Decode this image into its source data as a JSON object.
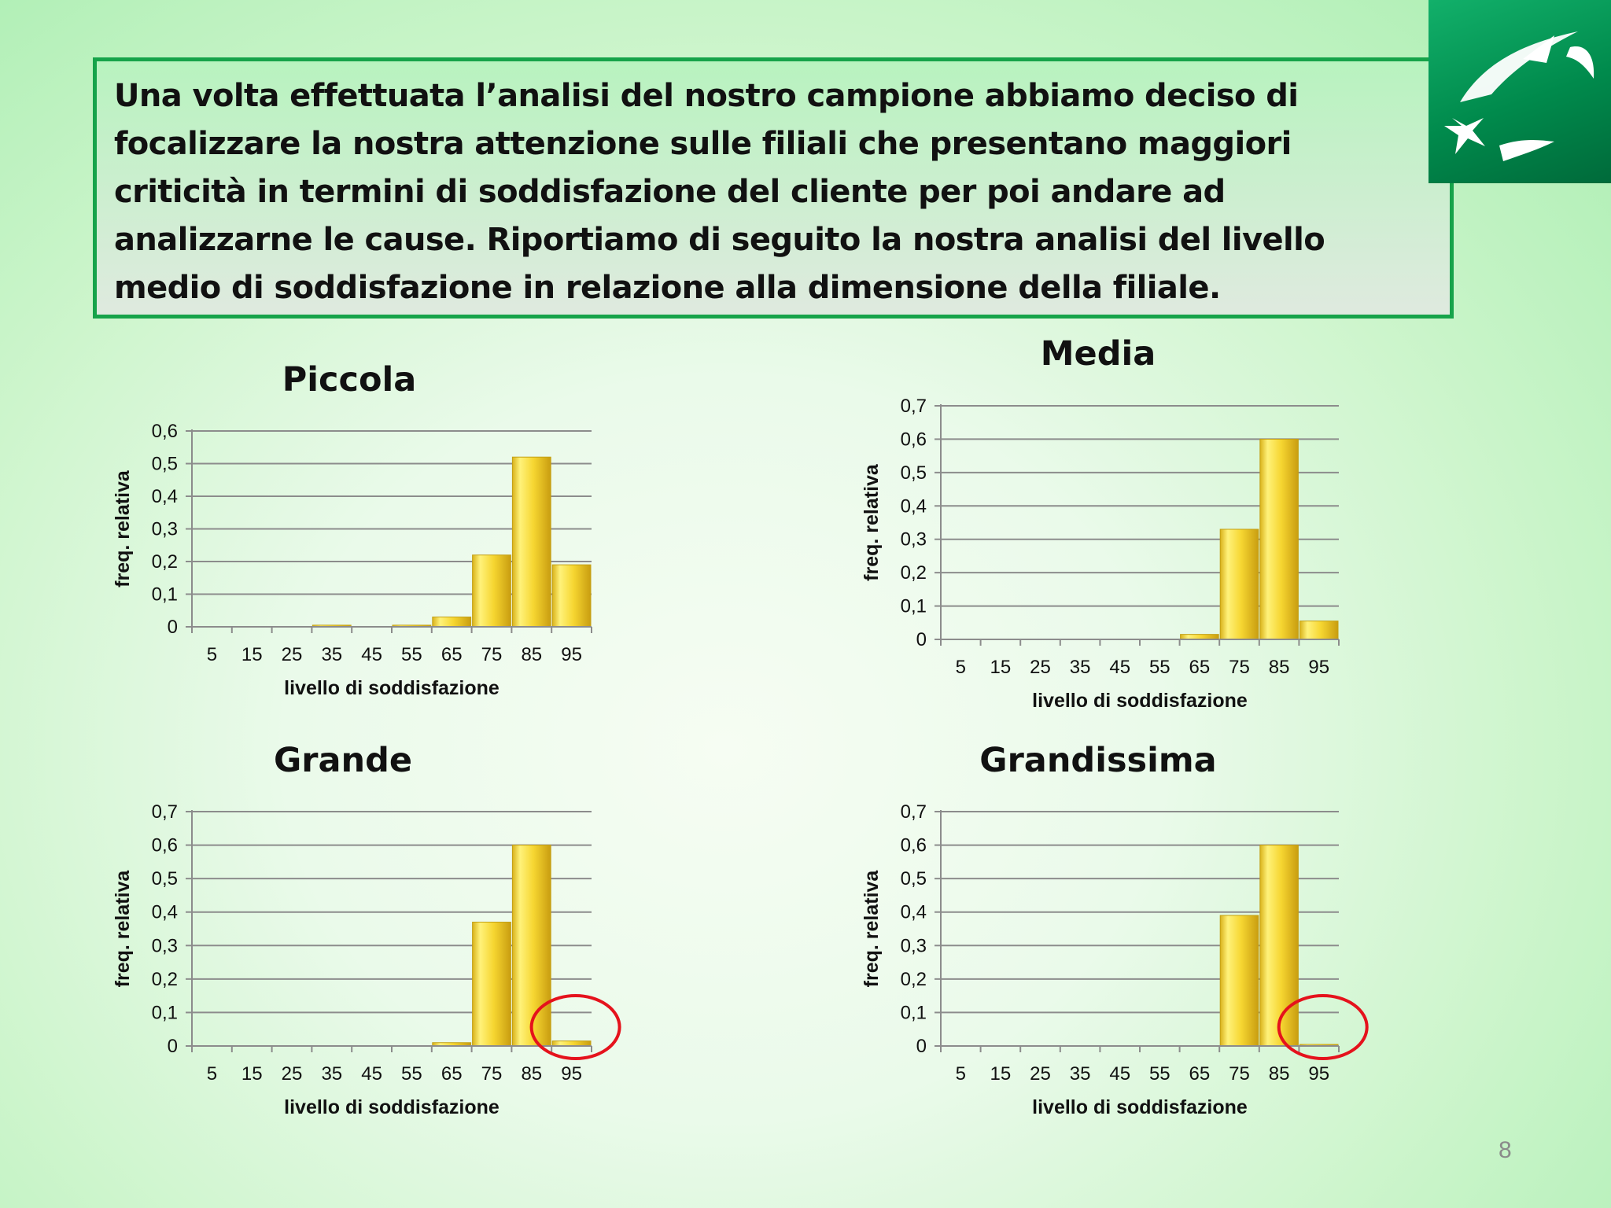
{
  "intro": {
    "text": "Una volta effettuata l’analisi del nostro campione abbiamo deciso di focalizzare la nostra attenzione sulle filiali che presentano maggiori criticità in termini di soddisfazione del cliente per poi andare ad analizzarne le cause.  Riportiamo di seguito la nostra analisi del livello medio di soddisfazione in relazione alla dimensione della filiale."
  },
  "logo": {
    "icon": "bnp-stars-logo-icon",
    "color": "#00965e"
  },
  "page_number": "8",
  "colors": {
    "bar": "#f4d22a",
    "highlight_circle": "#e5121c",
    "grid": "#8c8c8c"
  },
  "chart_data": [
    {
      "type": "bar",
      "title": "Piccola",
      "xlabel": "livello di soddisfazione",
      "ylabel": "freq. relativa",
      "categories": [
        "5",
        "15",
        "25",
        "35",
        "45",
        "55",
        "65",
        "75",
        "85",
        "95"
      ],
      "values": [
        0,
        0,
        0,
        0.005,
        0,
        0.005,
        0.03,
        0.22,
        0.52,
        0.19
      ],
      "ylim": [
        0,
        0.6
      ],
      "yticks": [
        "0",
        "0,1",
        "0,2",
        "0,3",
        "0,4",
        "0,5",
        "0,6"
      ],
      "grid": true,
      "highlight_category": null
    },
    {
      "type": "bar",
      "title": "Media",
      "xlabel": "livello di soddisfazione",
      "ylabel": "freq. relativa",
      "categories": [
        "5",
        "15",
        "25",
        "35",
        "45",
        "55",
        "65",
        "75",
        "85",
        "95"
      ],
      "values": [
        0,
        0,
        0,
        0,
        0,
        0,
        0.015,
        0.33,
        0.6,
        0.055
      ],
      "ylim": [
        0,
        0.7
      ],
      "yticks": [
        "0",
        "0,1",
        "0,2",
        "0,3",
        "0,4",
        "0,5",
        "0,6",
        "0,7"
      ],
      "grid": true,
      "highlight_category": null
    },
    {
      "type": "bar",
      "title": "Grande",
      "xlabel": "livello di soddisfazione",
      "ylabel": "freq. relativa",
      "categories": [
        "5",
        "15",
        "25",
        "35",
        "45",
        "55",
        "65",
        "75",
        "85",
        "95"
      ],
      "values": [
        0,
        0,
        0,
        0,
        0,
        0,
        0.01,
        0.37,
        0.6,
        0.015
      ],
      "ylim": [
        0,
        0.7
      ],
      "yticks": [
        "0",
        "0,1",
        "0,2",
        "0,3",
        "0,4",
        "0,5",
        "0,6",
        "0,7"
      ],
      "grid": true,
      "highlight_category": "95"
    },
    {
      "type": "bar",
      "title": "Grandissima",
      "xlabel": "livello di soddisfazione",
      "ylabel": "freq. relativa",
      "categories": [
        "5",
        "15",
        "25",
        "35",
        "45",
        "55",
        "65",
        "75",
        "85",
        "95"
      ],
      "values": [
        0,
        0,
        0,
        0,
        0,
        0,
        0,
        0.39,
        0.6,
        0.003
      ],
      "ylim": [
        0,
        0.7
      ],
      "yticks": [
        "0",
        "0,1",
        "0,2",
        "0,3",
        "0,4",
        "0,5",
        "0,6",
        "0,7"
      ],
      "grid": true,
      "highlight_category": "95"
    }
  ]
}
